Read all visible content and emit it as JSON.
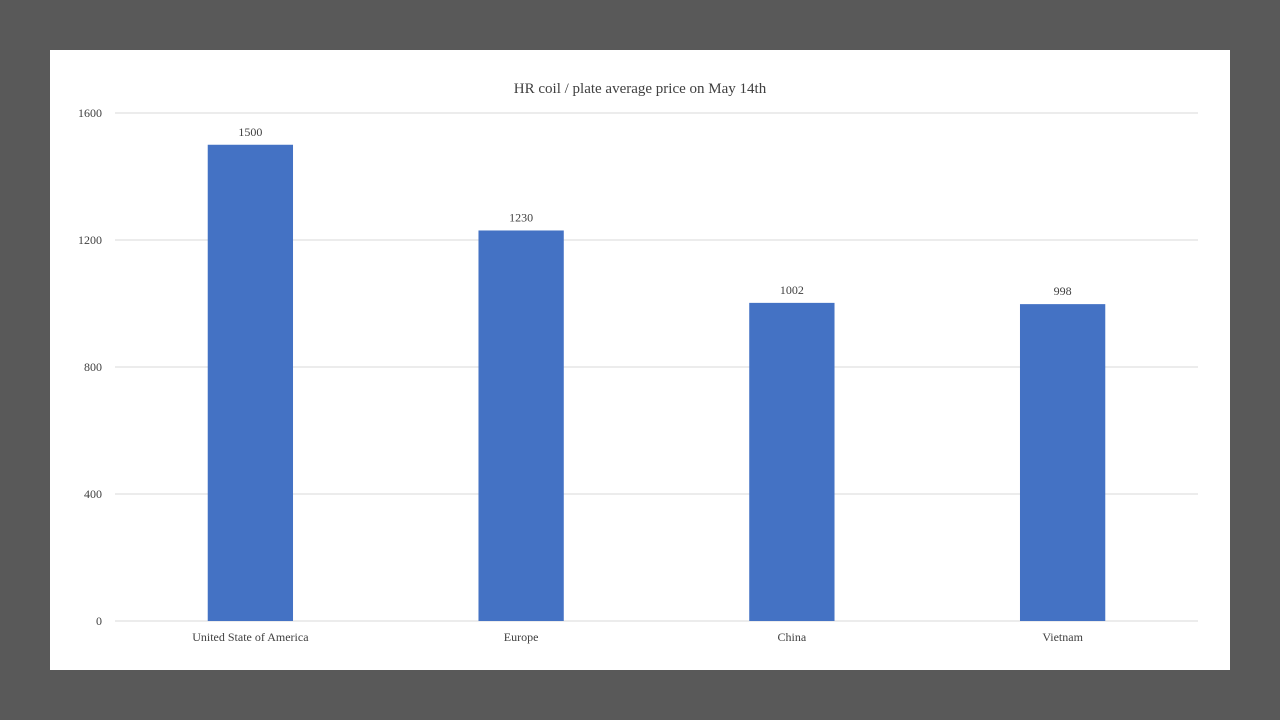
{
  "chart_data": {
    "type": "bar",
    "title": "HR coil / plate average price on May 14th",
    "categories": [
      "United State of America",
      "Europe",
      "China",
      "Vietnam"
    ],
    "values": [
      1500,
      1230,
      1002,
      998
    ],
    "ylim": [
      0,
      1600
    ],
    "yticks": [
      0,
      400,
      800,
      1200,
      1600
    ],
    "xlabel": "",
    "ylabel": "",
    "grid": true,
    "legend": "none",
    "bar_color": "#4472c4"
  }
}
